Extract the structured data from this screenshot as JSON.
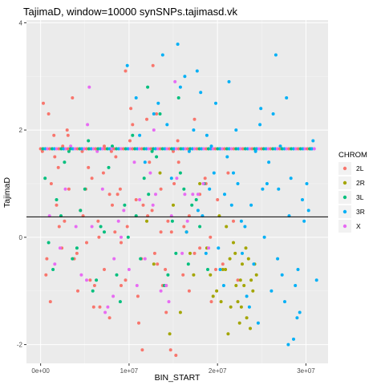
{
  "chart_data": {
    "type": "scatter",
    "title": "TajimaD, window=10000 synSNPs.tajimasd.vk",
    "xlabel": "BIN_START",
    "ylabel": "TajimaD",
    "xlim": [
      -1600000,
      32500000
    ],
    "ylim": [
      -2.35,
      4.05
    ],
    "x_ticks": [
      0,
      10000000,
      20000000,
      30000000
    ],
    "x_tick_labels": [
      "0e+00",
      "1e+07",
      "2e+07",
      "3e+07"
    ],
    "y_ticks": [
      -2,
      0,
      2,
      4
    ],
    "y_tick_labels": [
      "-2",
      "0",
      "2",
      "4"
    ],
    "hline": 0.38,
    "grid": true,
    "background": "#EBEBEB",
    "legend": {
      "title": "CHROM",
      "position": "right",
      "entries": [
        {
          "label": "2L",
          "color": "#F8766D",
          "shape": "circle"
        },
        {
          "label": "2R",
          "color": "#A3A500",
          "shape": "circle"
        },
        {
          "label": "3L",
          "color": "#00BF7D",
          "shape": "circle"
        },
        {
          "label": "3R",
          "color": "#00B0F6",
          "shape": "circle"
        },
        {
          "label": "X",
          "color": "#E76BF3",
          "shape": "circle"
        }
      ]
    },
    "series": [
      {
        "name": "2L",
        "color": "#F8766D",
        "x": [
          300000,
          900000,
          1500000,
          2000000,
          2500000,
          3200000,
          3800000,
          4500000,
          5200000,
          5800000,
          6500000,
          7200000,
          7800000,
          8500000,
          9100000,
          9800000,
          10400000,
          11000000,
          11600000,
          12300000,
          12900000,
          13600000,
          14200000,
          14800000,
          15500000,
          16100000,
          16800000,
          17400000,
          18000000,
          18700000,
          19300000,
          20000000,
          20600000,
          21200000,
          21800000,
          22300000,
          600000,
          1800000,
          3000000,
          4200000,
          5400000,
          6600000,
          7800000,
          9000000,
          10200000,
          11400000,
          12600000,
          13800000,
          15000000,
          16200000,
          17400000,
          18600000,
          19800000,
          1200000,
          2400000,
          3600000,
          4800000,
          6000000,
          7200000,
          8400000,
          9600000,
          10800000,
          12000000,
          13200000,
          14400000,
          15600000,
          16800000,
          18000000,
          19200000,
          200000,
          1100000,
          2100000,
          3100000,
          4100000,
          5100000,
          6100000,
          7100000,
          8100000,
          9100000,
          10100000,
          11100000,
          12100000,
          13100000,
          14100000,
          15100000,
          700000,
          2700000,
          4700000,
          6700000,
          8700000,
          12700000,
          14700000,
          1600000,
          5600000,
          9600000,
          13600000,
          11500000,
          15300000,
          8000000
        ],
        "y": [
          2.5,
          2.3,
          1.9,
          1.3,
          1.7,
          0.9,
          -0.4,
          0.5,
          -0.1,
          1.1,
          0.3,
          -0.6,
          0.8,
          1.5,
          -0.9,
          0.2,
          2.1,
          -1.1,
          0.6,
          1.4,
          -0.3,
          0.9,
          -1.4,
          0.1,
          1.8,
          -0.7,
          0.4,
          2.2,
          -0.2,
          1.0,
          -1.2,
          0.7,
          -0.5,
          1.2,
          0.3,
          -0.8,
          -0.7,
          0.6,
          2.0,
          -1.0,
          1.3,
          0.0,
          -1.5,
          0.9,
          2.4,
          -0.4,
          0.5,
          -0.9,
          1.6,
          0.2,
          -0.3,
          1.1,
          -0.6,
          1.0,
          -0.2,
          2.6,
          0.4,
          -1.3,
          1.7,
          0.1,
          -0.8,
          0.7,
          2.2,
          -0.5,
          0.3,
          1.4,
          -1.0,
          0.8,
          0.0,
          1.6,
          -1.2,
          0.2,
          1.9,
          -0.3,
          0.9,
          -0.9,
          1.2,
          0.6,
          -0.1,
          1.8,
          -1.6,
          0.4,
          2.3,
          -0.6,
          1.0,
          -0.4,
          0.3,
          1.6,
          -1.3,
          0.8,
          3.2,
          -2.1,
          1.5,
          -0.8,
          3.1,
          0.1,
          -2.1,
          -2.2,
          1.6
        ]
      },
      {
        "name": "2R",
        "color": "#A3A500",
        "x": [
          12000000,
          12800000,
          13500000,
          14200000,
          15000000,
          15800000,
          16500000,
          17300000,
          18000000,
          18800000,
          19500000,
          20200000,
          20900000,
          21500000,
          22000000,
          22500000,
          23000000,
          23500000,
          24000000,
          24400000,
          21200000,
          21800000,
          22300000,
          22800000,
          23300000,
          23800000,
          20600000,
          19900000,
          21000000,
          22100000,
          22700000,
          23200000,
          23700000,
          24200000,
          20400000,
          21400000,
          22600000,
          14600000,
          16900000,
          19200000
        ],
        "y": [
          0.3,
          -0.5,
          1.2,
          -0.9,
          0.6,
          -1.4,
          0.1,
          -0.7,
          1.0,
          -0.2,
          -1.1,
          0.4,
          -0.6,
          -1.3,
          -0.3,
          -1.6,
          -0.9,
          -0.4,
          -1.0,
          -0.7,
          -1.8,
          -0.1,
          -1.2,
          -0.5,
          -1.5,
          -0.8,
          -0.6,
          -1.0,
          0.2,
          -0.9,
          -1.3,
          -0.2,
          -1.7,
          -0.5,
          -1.2,
          -0.4,
          -0.8,
          -1.8,
          -0.3,
          -0.7
        ]
      },
      {
        "name": "3L",
        "color": "#00BF7D",
        "x": [
          500000,
          1400000,
          2300000,
          3200000,
          4100000,
          5000000,
          5900000,
          6800000,
          7700000,
          8600000,
          9500000,
          10400000,
          11300000,
          12200000,
          13100000,
          14000000,
          14900000,
          15800000,
          16700000,
          17600000,
          18500000,
          900000,
          2700000,
          4500000,
          6300000,
          8100000,
          9900000,
          11700000,
          13500000,
          15300000,
          17100000,
          18900000,
          1800000,
          3600000,
          5400000,
          7200000,
          9000000,
          10800000,
          12600000,
          14400000,
          16200000,
          18000000,
          12100000,
          15600000
        ],
        "y": [
          1.1,
          -0.6,
          0.4,
          1.6,
          -0.2,
          0.9,
          -1.0,
          0.2,
          1.3,
          -0.7,
          0.6,
          1.9,
          -0.4,
          0.8,
          1.5,
          -0.9,
          0.3,
          1.2,
          -0.5,
          0.7,
          1.0,
          -0.1,
          1.4,
          0.5,
          -0.8,
          1.7,
          0.0,
          1.1,
          2.3,
          -0.3,
          0.6,
          -0.6,
          0.7,
          -0.4,
          1.8,
          0.1,
          -1.2,
          0.4,
          1.6,
          -0.7,
          0.9,
          0.2,
          2.8,
          2.6
        ]
      },
      {
        "name": "3R",
        "color": "#00B0F6",
        "x": [
          9800000,
          10800000,
          11800000,
          12800000,
          13800000,
          14800000,
          15800000,
          16800000,
          17800000,
          18800000,
          19800000,
          20800000,
          21800000,
          22800000,
          23800000,
          24800000,
          25800000,
          26800000,
          27800000,
          28800000,
          29800000,
          30800000,
          31200000,
          16300000,
          17300000,
          18300000,
          19300000,
          20300000,
          21300000,
          22300000,
          23300000,
          24300000,
          25300000,
          26300000,
          27300000,
          28300000,
          29300000,
          30300000,
          18100000,
          19100000,
          20100000,
          21100000,
          22100000,
          23100000,
          24100000,
          25100000,
          26100000,
          27100000,
          28100000,
          29100000,
          30100000,
          15500000,
          19600000,
          21600000,
          23600000,
          25600000,
          27600000,
          29600000,
          14300000,
          26600000,
          24600000,
          28600000,
          30600000,
          17700000,
          22700000,
          20700000,
          26900000,
          29000000,
          28000000,
          24900000,
          16500000,
          18700000,
          11200000,
          13300000
        ],
        "y": [
          3.2,
          2.6,
          1.4,
          2.3,
          3.4,
          1.1,
          2.8,
          1.6,
          0.5,
          1.9,
          2.5,
          0.8,
          1.2,
          -0.3,
          0.6,
          2.1,
          1.4,
          -0.4,
          2.6,
          -0.9,
          0.3,
          1.8,
          -0.8,
          3.0,
          2.0,
          0.4,
          1.7,
          -0.6,
          2.9,
          1.0,
          -1.1,
          1.6,
          0.0,
          2.3,
          -0.7,
          1.1,
          -1.4,
          0.5,
          2.7,
          0.9,
          -0.2,
          1.5,
          2.0,
          0.2,
          -0.5,
          0.9,
          -1.0,
          1.7,
          0.4,
          -0.6,
          1.0,
          3.6,
          1.2,
          0.6,
          -1.3,
          1.0,
          -1.2,
          0.7,
          2.1,
          3.4,
          -1.6,
          -1.9,
          1.65,
          3.1,
          0.3,
          -0.9,
          0.9,
          -1.5,
          -2.0,
          2.4,
          0.1,
          -0.3,
          1.9,
          2.5
        ]
      },
      {
        "name": "X",
        "color": "#E76BF3",
        "x": [
          1000000,
          2200000,
          3400000,
          4600000,
          5800000,
          7000000,
          8200000,
          9400000,
          10600000,
          11800000,
          13000000,
          14200000,
          15400000,
          16600000,
          17800000,
          19000000,
          1600000,
          2800000,
          4000000,
          5200000,
          6400000,
          7600000,
          8800000,
          10000000,
          11200000,
          12400000,
          13600000,
          14800000,
          16000000,
          17200000,
          18400000,
          5500000,
          7300000,
          9100000,
          10900000,
          12700000,
          14500000,
          16300000,
          5300000,
          8300000,
          12800000,
          15200000
        ],
        "y": [
          0.4,
          -0.2,
          1.7,
          -0.7,
          0.2,
          0.9,
          -1.1,
          0.5,
          1.4,
          -0.4,
          0.8,
          -0.9,
          1.1,
          0.3,
          0.8,
          -0.2,
          -0.5,
          0.9,
          0.2,
          -0.8,
          1.6,
          -1.3,
          0.3,
          -0.6,
          0.7,
          1.2,
          -1.0,
          0.4,
          -0.3,
          0.8,
          1.0,
          2.8,
          -1.4,
          0.0,
          -0.9,
          0.6,
          -1.2,
          0.8,
          2.1,
          -0.4,
          2.0,
          2.9
        ]
      }
    ],
    "dense_band": {
      "y": 1.65,
      "series": [
        "2L",
        "3L",
        "3R",
        "X"
      ],
      "x": [
        0,
        31000000
      ],
      "step": 260000
    }
  }
}
